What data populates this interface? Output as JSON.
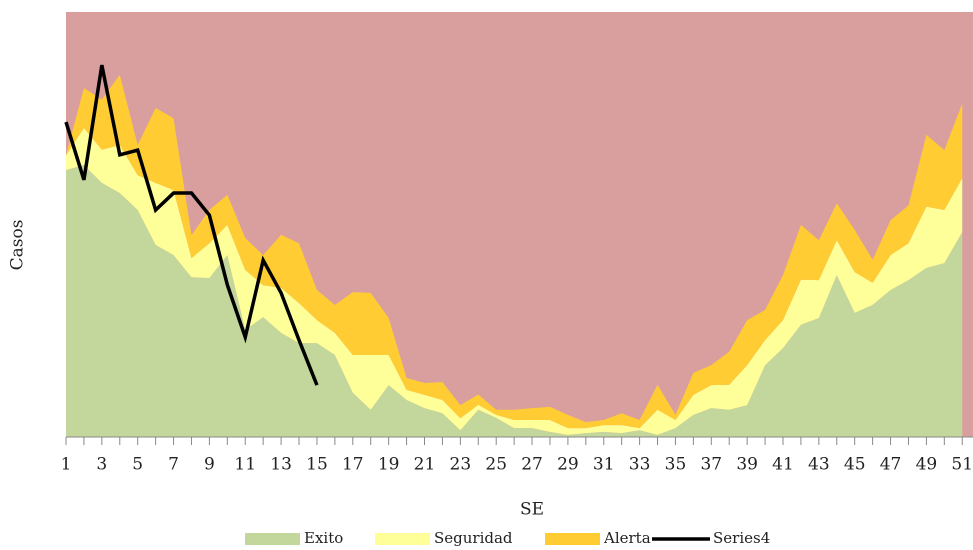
{
  "chart_data": {
    "type": "area",
    "stacked": true,
    "x_label": "SE",
    "y_label": "Casos",
    "x": [
      1,
      2,
      3,
      4,
      5,
      6,
      7,
      8,
      9,
      10,
      11,
      12,
      13,
      14,
      15,
      16,
      17,
      18,
      19,
      20,
      21,
      22,
      23,
      24,
      25,
      26,
      27,
      28,
      29,
      30,
      31,
      32,
      33,
      34,
      35,
      36,
      37,
      38,
      39,
      40,
      41,
      42,
      43,
      44,
      45,
      46,
      47,
      48,
      49,
      50,
      51
    ],
    "xlim": [
      1,
      51.6
    ],
    "xticks": [
      1,
      3,
      5,
      7,
      9,
      11,
      13,
      15,
      17,
      19,
      21,
      23,
      25,
      27,
      29,
      31,
      33,
      35,
      37,
      39,
      41,
      43,
      45,
      47,
      49,
      51
    ],
    "ylim": [
      0,
      100
    ],
    "plot_background": "#d99e9e",
    "series": [
      {
        "name": "Exito",
        "type": "area",
        "color": "#c3d69b",
        "values": [
          62.8,
          64.0,
          59.8,
          57.4,
          53.4,
          45.2,
          42.8,
          37.6,
          37.4,
          42.8,
          25.2,
          28.2,
          24.5,
          22.1,
          22.1,
          19.3,
          10.4,
          6.4,
          12.2,
          8.7,
          6.8,
          5.6,
          1.6,
          6.4,
          4.5,
          2.1,
          2.1,
          1.2,
          0.5,
          0.9,
          1.2,
          0.9,
          1.6,
          0.5,
          2.1,
          5.2,
          6.8,
          6.4,
          7.5,
          16.9,
          20.9,
          26.4,
          28.0,
          38.1,
          29.2,
          31.1,
          34.6,
          36.9,
          39.8,
          40.9,
          48.2
        ]
      },
      {
        "name": "Seguridad",
        "type": "area",
        "color": "#ffff99",
        "values": [
          3.5,
          8.7,
          7.8,
          11.3,
          8.2,
          14.6,
          15.3,
          4.5,
          8.2,
          7.1,
          14.1,
          7.5,
          10.6,
          9.4,
          5.4,
          5.2,
          8.9,
          12.9,
          7.1,
          2.4,
          3.1,
          3.1,
          2.8,
          1.2,
          0.7,
          1.9,
          1.9,
          2.8,
          1.6,
          1.2,
          1.6,
          1.9,
          0.5,
          5.9,
          1.9,
          4.7,
          5.4,
          5.9,
          9.4,
          5.9,
          6.6,
          10.6,
          8.9,
          8.2,
          9.6,
          5.2,
          8.2,
          8.7,
          14.4,
          12.5,
          12.7
        ]
      },
      {
        "name": "Alerta",
        "type": "area",
        "color": "#ffcc33",
        "values": [
          0,
          9.4,
          11.8,
          16.5,
          7.1,
          17.6,
          16.9,
          5.4,
          7.8,
          7.1,
          7.5,
          7.1,
          12.5,
          14.1,
          7.1,
          6.6,
          14.8,
          14.6,
          8.7,
          2.8,
          2.8,
          4.2,
          3.1,
          2.4,
          1.2,
          2.4,
          2.8,
          3.1,
          3.1,
          1.4,
          1.2,
          2.8,
          1.9,
          5.9,
          1.2,
          5.2,
          4.7,
          7.8,
          10.6,
          7.1,
          10.6,
          12.9,
          9.4,
          8.7,
          9.9,
          5.4,
          8.2,
          8.9,
          16.9,
          14.1,
          17.6
        ]
      },
      {
        "name": "Series4",
        "type": "line",
        "color": "#000000",
        "values": [
          74.1,
          60.5,
          87.5,
          66.4,
          67.5,
          53.4,
          57.4,
          57.4,
          52.2,
          35.8,
          23.5,
          41.6,
          33.9,
          22.8,
          12.2,
          null,
          null,
          null,
          null,
          null,
          null,
          null,
          null,
          null,
          null,
          null,
          null,
          null,
          null,
          null,
          null,
          null,
          null,
          null,
          null,
          null,
          null,
          null,
          null,
          null,
          null,
          null,
          null,
          null,
          null,
          null,
          null,
          null,
          null,
          null,
          null
        ]
      }
    ]
  }
}
